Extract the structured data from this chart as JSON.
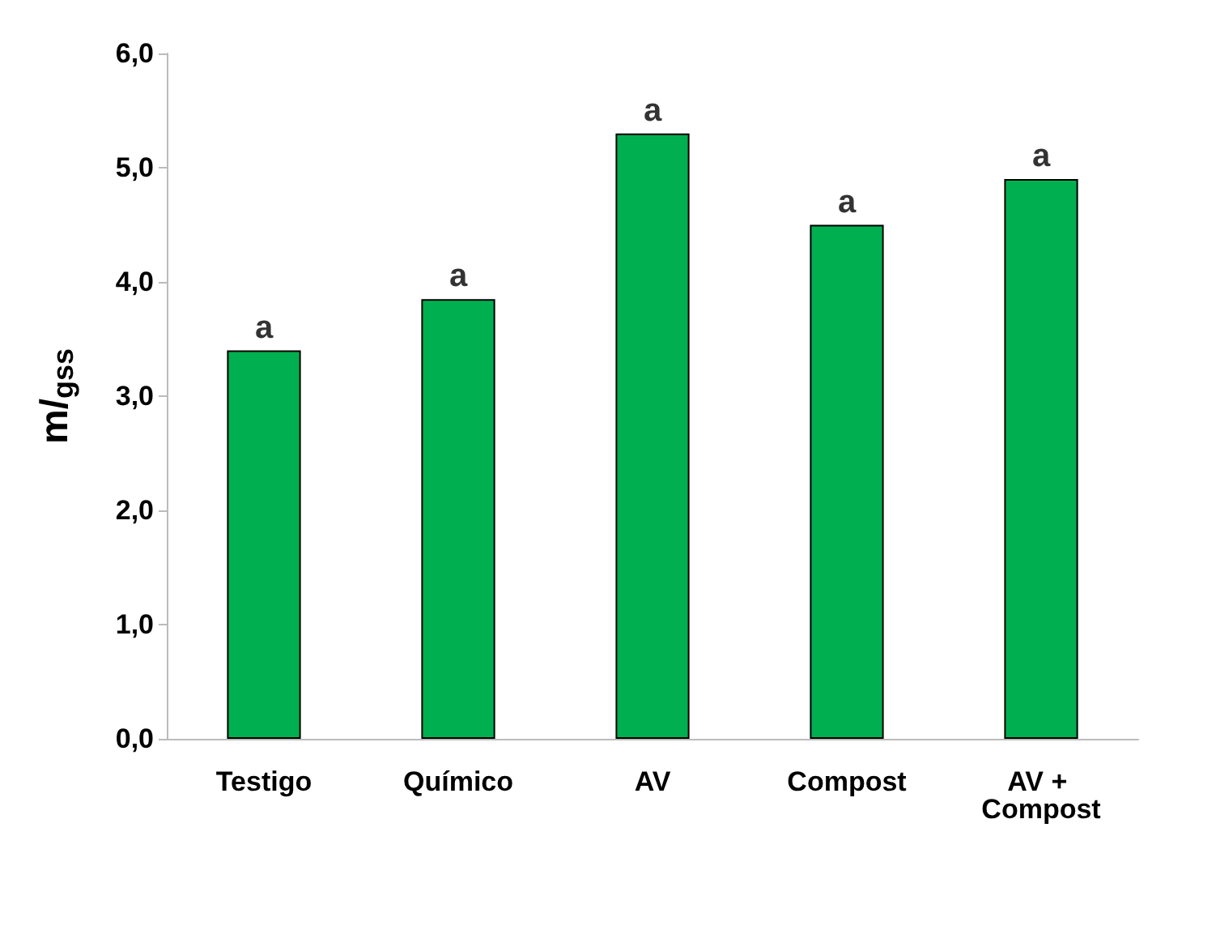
{
  "chart_data": {
    "type": "bar",
    "ylabel": "m/$_{gss}$",
    "categories": [
      "Testigo",
      "Químico",
      "AV",
      "Compost",
      "AV + Compost"
    ],
    "values": [
      3.4,
      3.85,
      5.3,
      4.5,
      4.9
    ],
    "color": "#00b050",
    "ylim": [
      0,
      6
    ],
    "yticks": [
      {
        "value": 0,
        "label": "0,0"
      },
      {
        "value": 1,
        "label": "1,0"
      },
      {
        "value": 2,
        "label": "2,0"
      },
      {
        "value": 3,
        "label": "3,0"
      },
      {
        "value": 4,
        "label": "4,0"
      },
      {
        "value": 5,
        "label": "5,0"
      },
      {
        "value": 6,
        "label": "6,0"
      }
    ],
    "grid": false,
    "annotations": [
      {
        "text": "a",
        "x": "Testigo",
        "y": 3.4
      },
      {
        "text": "a",
        "x": "Químico",
        "y": 3.85
      },
      {
        "text": "a",
        "x": "AV",
        "y": 5.3
      },
      {
        "text": "a",
        "x": "Compost",
        "y": 4.5
      },
      {
        "text": "a",
        "x": "AV + Compost",
        "y": 4.9
      }
    ]
  }
}
